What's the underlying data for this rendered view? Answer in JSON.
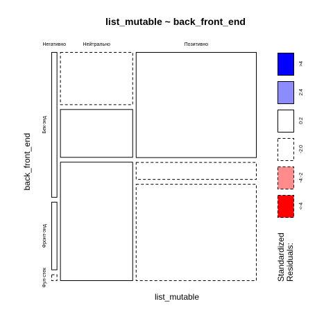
{
  "chart_data": {
    "type": "mosaic",
    "title": "list_mutable ~ back_front_end",
    "xlabel": "list_mutable",
    "ylabel": "back_front_end",
    "columns": [
      "Негативно",
      "Нейтрально",
      "Позитивно"
    ],
    "rows": [
      "Бек-энд",
      "Фронт-энд",
      "Фул-стек"
    ],
    "column_proportions": [
      0.03,
      0.365,
      0.605
    ],
    "cells": [
      {
        "column": "Негативно",
        "row": "Бек-энд",
        "proportion": 0.66,
        "residual_class": "0:2"
      },
      {
        "column": "Негативно",
        "row": "Фронт-энд",
        "proportion": 0.31,
        "residual_class": "0:2"
      },
      {
        "column": "Негативно",
        "row": "Фул-стек",
        "proportion": 0.03,
        "residual_class": "-2:0"
      },
      {
        "column": "Нейтрально",
        "row": "Бек-энд",
        "proportion": 0.24,
        "residual_class": "-2:0"
      },
      {
        "column": "Нейтрально",
        "row": "Фронт-энд",
        "proportion": 0.22,
        "residual_class": "0:2"
      },
      {
        "column": "Нейтрально",
        "row": "Фул-стек",
        "proportion": 0.54,
        "residual_class": "0:2"
      },
      {
        "column": "Позитивно",
        "row": "Бек-энд",
        "proportion": 0.48,
        "residual_class": "0:2"
      },
      {
        "column": "Позитивно",
        "row": "Фронт-энд",
        "proportion": 0.08,
        "residual_class": "-2:0"
      },
      {
        "column": "Позитивно",
        "row": "Фул-стек",
        "proportion": 0.44,
        "residual_class": "-2:0"
      }
    ],
    "legend": {
      "title_lines": [
        "Standardized",
        "Residuals:"
      ],
      "placement": "right",
      "entries": [
        {
          "label": ">4",
          "fill": "#0000ff",
          "dashed": false
        },
        {
          "label": "2:4",
          "fill": "#8c8cff",
          "dashed": false
        },
        {
          "label": "0:2",
          "fill": "#ffffff",
          "dashed": false
        },
        {
          "label": "-2:0",
          "fill": "#ffffff",
          "dashed": true
        },
        {
          "label": "-4:-2",
          "fill": "#ff8c8c",
          "dashed": true
        },
        {
          "label": "<-4",
          "fill": "#ff0000",
          "dashed": true
        }
      ]
    },
    "colors": {
      "positive_strong": "#0000ff",
      "positive": "#8c8cff",
      "neutral": "#ffffff",
      "negative": "#ff8c8c",
      "negative_strong": "#ff0000"
    }
  }
}
